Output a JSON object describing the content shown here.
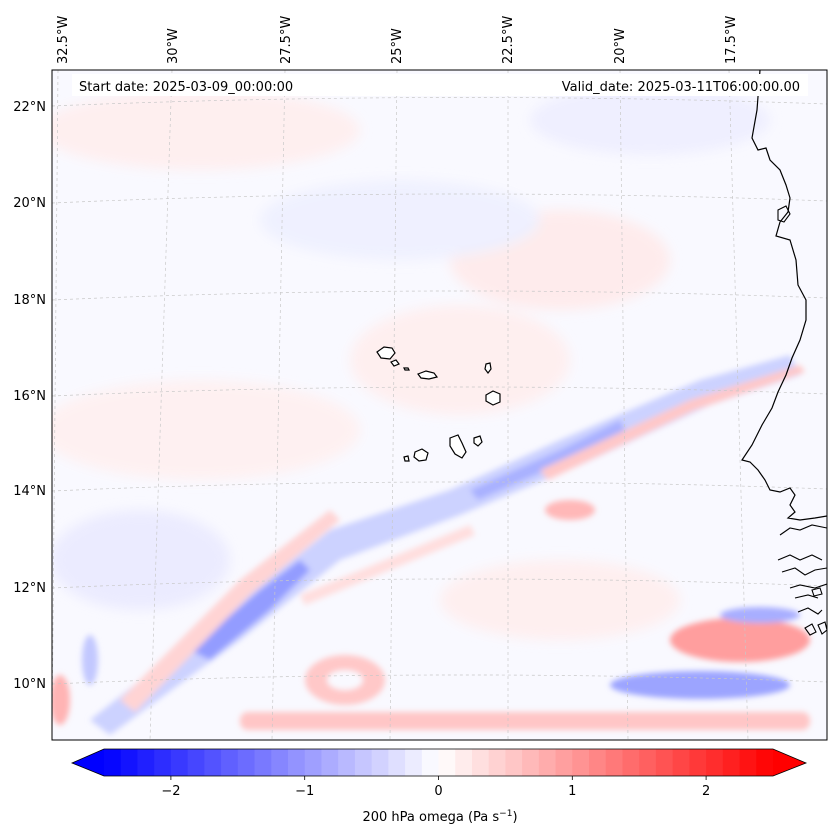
{
  "map": {
    "start_date": "Start date: 2025-03-09_00:00:00",
    "valid_date": "Valid_date: 2025-03-11T06:00:00.00",
    "longitude_labels": [
      "32.5°W",
      "30°W",
      "27.5°W",
      "25°W",
      "22.5°W",
      "20°W",
      "17.5°W"
    ],
    "latitude_labels": [
      "22°N",
      "20°N",
      "18°N",
      "16°N",
      "14°N",
      "12°N",
      "10°N"
    ],
    "colors": {
      "negative": "#0000ff",
      "zero": "#ffffff",
      "positive": "#ff0000",
      "coastline": "#000000",
      "gridline": "#c8c8c8"
    }
  },
  "colorbar": {
    "min": -2.5,
    "max": 2.5,
    "tick_labels": [
      "−2",
      "−1",
      "0",
      "1",
      "2"
    ],
    "tick_values": [
      -2,
      -1,
      0,
      1,
      2
    ],
    "label": "200 hPa omega (Pa s",
    "label_sup": "−1",
    "label_end": ")"
  }
}
